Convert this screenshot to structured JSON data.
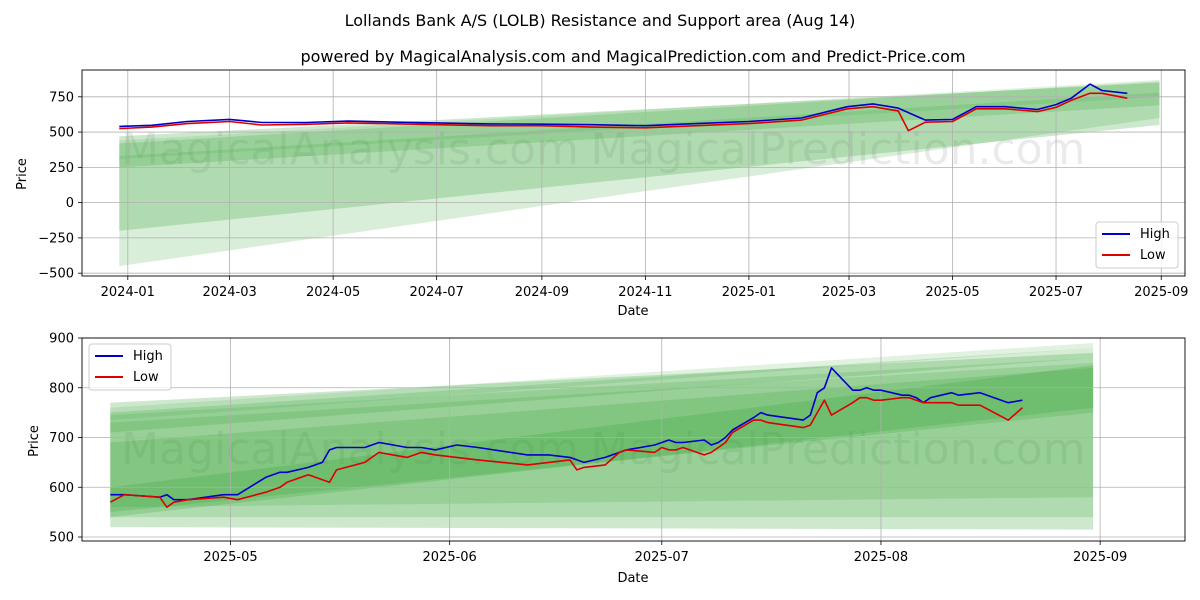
{
  "suptitle": "Lollands Bank A/S (LOLB) Resistance and Support area (Aug 14)",
  "watermarks": [
    "MagicalAnalysis.com",
    "MagicalPrediction.com"
  ],
  "colors": {
    "high": "#0000cc",
    "low": "#dd0000",
    "band": "#2ca02c",
    "grid": "#b0b0b0"
  },
  "chart_data": [
    {
      "type": "line",
      "title": "powered by MagicalAnalysis.com and MagicalPrediction.com and Predict-Price.com",
      "xlabel": "Date",
      "ylabel": "Price",
      "xlim": [
        "2023-12-05",
        "2025-09-15"
      ],
      "ylim": [
        -520,
        940
      ],
      "x_ticks": [
        "2024-01-01",
        "2024-03-01",
        "2024-05-01",
        "2024-07-01",
        "2024-09-01",
        "2024-11-01",
        "2025-01-01",
        "2025-03-01",
        "2025-05-01",
        "2025-07-01",
        "2025-09-01"
      ],
      "x_tick_labels": [
        "2024-01",
        "2024-03",
        "2024-05",
        "2024-07",
        "2024-09",
        "2024-11",
        "2025-01",
        "2025-03",
        "2025-05",
        "2025-07",
        "2025-09"
      ],
      "y_ticks": [
        -500,
        -250,
        0,
        250,
        500,
        750
      ],
      "y_tick_labels": [
        "−500",
        "−250",
        "0",
        "250",
        "500",
        "750"
      ],
      "grid": true,
      "legend": "lower-right",
      "series": [
        {
          "name": "High",
          "color": "#0000cc",
          "x": [
            "2023-12-27",
            "2024-01-15",
            "2024-02-05",
            "2024-03-01",
            "2024-03-20",
            "2024-04-15",
            "2024-05-10",
            "2024-06-01",
            "2024-07-01",
            "2024-08-01",
            "2024-09-01",
            "2024-10-01",
            "2024-11-01",
            "2024-12-01",
            "2025-01-01",
            "2025-02-01",
            "2025-02-28",
            "2025-03-15",
            "2025-03-30",
            "2025-04-15",
            "2025-05-01",
            "2025-05-15",
            "2025-06-01",
            "2025-06-20",
            "2025-07-01",
            "2025-07-10",
            "2025-07-21",
            "2025-07-28",
            "2025-08-12"
          ],
          "y": [
            540,
            548,
            575,
            590,
            568,
            568,
            578,
            572,
            565,
            558,
            556,
            552,
            545,
            560,
            575,
            600,
            680,
            700,
            670,
            585,
            590,
            680,
            680,
            660,
            695,
            740,
            840,
            795,
            775
          ]
        },
        {
          "name": "Low",
          "color": "#dd0000",
          "x": [
            "2023-12-27",
            "2024-01-15",
            "2024-02-05",
            "2024-03-01",
            "2024-03-20",
            "2024-04-15",
            "2024-05-10",
            "2024-06-01",
            "2024-07-01",
            "2024-08-01",
            "2024-09-01",
            "2024-10-01",
            "2024-11-01",
            "2024-12-01",
            "2025-01-01",
            "2025-02-01",
            "2025-02-28",
            "2025-03-15",
            "2025-03-30",
            "2025-04-05",
            "2025-04-15",
            "2025-05-01",
            "2025-05-15",
            "2025-06-01",
            "2025-06-20",
            "2025-07-01",
            "2025-07-10",
            "2025-07-21",
            "2025-07-28",
            "2025-08-12"
          ],
          "y": [
            525,
            535,
            560,
            575,
            550,
            555,
            565,
            560,
            552,
            545,
            545,
            535,
            530,
            545,
            560,
            585,
            665,
            680,
            650,
            510,
            570,
            575,
            665,
            665,
            645,
            675,
            725,
            775,
            775,
            740
          ]
        }
      ],
      "bands": [
        {
          "x0": "2023-12-27",
          "x1": "2025-08-31",
          "lo": [
            310,
            750
          ],
          "hi": [
            440,
            870
          ]
        },
        {
          "x0": "2023-12-27",
          "x1": "2025-08-31",
          "lo": [
            250,
            690
          ],
          "hi": [
            420,
            860
          ]
        },
        {
          "x0": "2023-12-27",
          "x1": "2025-08-31",
          "lo": [
            -200,
            550
          ],
          "hi": [
            470,
            850
          ]
        },
        {
          "x0": "2023-12-27",
          "x1": "2025-08-31",
          "lo": [
            -450,
            600
          ],
          "hi": [
            330,
            780
          ]
        }
      ]
    },
    {
      "type": "line",
      "title": "",
      "xlabel": "Date",
      "ylabel": "Price",
      "xlim": [
        "2025-04-10",
        "2025-09-13"
      ],
      "ylim": [
        492,
        900
      ],
      "x_ticks": [
        "2025-05-01",
        "2025-06-01",
        "2025-07-01",
        "2025-08-01",
        "2025-09-01"
      ],
      "x_tick_labels": [
        "2025-05",
        "2025-06",
        "2025-07",
        "2025-08",
        "2025-09"
      ],
      "y_ticks": [
        500,
        600,
        700,
        800,
        900
      ],
      "y_tick_labels": [
        "500",
        "600",
        "700",
        "800",
        "900"
      ],
      "grid": true,
      "legend": "upper-left",
      "series": [
        {
          "name": "High",
          "color": "#0000cc",
          "x": [
            "2025-04-14",
            "2025-04-16",
            "2025-04-21",
            "2025-04-22",
            "2025-04-23",
            "2025-04-25",
            "2025-04-30",
            "2025-05-02",
            "2025-05-06",
            "2025-05-08",
            "2025-05-09",
            "2025-05-12",
            "2025-05-14",
            "2025-05-15",
            "2025-05-16",
            "2025-05-20",
            "2025-05-22",
            "2025-05-26",
            "2025-05-28",
            "2025-05-30",
            "2025-06-02",
            "2025-06-05",
            "2025-06-12",
            "2025-06-15",
            "2025-06-18",
            "2025-06-19",
            "2025-06-20",
            "2025-06-23",
            "2025-06-25",
            "2025-06-26",
            "2025-06-30",
            "2025-07-01",
            "2025-07-02",
            "2025-07-03",
            "2025-07-04",
            "2025-07-07",
            "2025-07-08",
            "2025-07-09",
            "2025-07-10",
            "2025-07-11",
            "2025-07-14",
            "2025-07-15",
            "2025-07-16",
            "2025-07-21",
            "2025-07-22",
            "2025-07-23",
            "2025-07-24",
            "2025-07-25",
            "2025-07-28",
            "2025-07-29",
            "2025-07-30",
            "2025-07-31",
            "2025-08-01",
            "2025-08-04",
            "2025-08-05",
            "2025-08-06",
            "2025-08-07",
            "2025-08-08",
            "2025-08-11",
            "2025-08-12"
          ],
          "y": [
            585,
            585,
            580,
            585,
            575,
            575,
            585,
            585,
            620,
            630,
            630,
            640,
            650,
            675,
            680,
            680,
            690,
            680,
            680,
            675,
            685,
            680,
            665,
            665,
            660,
            655,
            650,
            660,
            670,
            675,
            685,
            690,
            695,
            690,
            690,
            695,
            685,
            690,
            700,
            715,
            740,
            750,
            745,
            735,
            745,
            790,
            800,
            840,
            795,
            795,
            800,
            795,
            795,
            785,
            785,
            780,
            770,
            780,
            790,
            785
          ],
          "x_extra": [
            "2025-08-15",
            "2025-08-19",
            "2025-08-21"
          ],
          "y_extra": [
            790,
            770,
            775
          ]
        },
        {
          "name": "Low",
          "color": "#dd0000",
          "x": [
            "2025-04-14",
            "2025-04-16",
            "2025-04-21",
            "2025-04-22",
            "2025-04-23",
            "2025-04-25",
            "2025-04-30",
            "2025-05-02",
            "2025-05-06",
            "2025-05-08",
            "2025-05-09",
            "2025-05-12",
            "2025-05-14",
            "2025-05-15",
            "2025-05-16",
            "2025-05-20",
            "2025-05-22",
            "2025-05-26",
            "2025-05-28",
            "2025-05-30",
            "2025-06-02",
            "2025-06-05",
            "2025-06-12",
            "2025-06-15",
            "2025-06-18",
            "2025-06-19",
            "2025-06-20",
            "2025-06-23",
            "2025-06-25",
            "2025-06-26",
            "2025-06-30",
            "2025-07-01",
            "2025-07-02",
            "2025-07-03",
            "2025-07-04",
            "2025-07-07",
            "2025-07-08",
            "2025-07-09",
            "2025-07-10",
            "2025-07-11",
            "2025-07-14",
            "2025-07-15",
            "2025-07-16",
            "2025-07-21",
            "2025-07-22",
            "2025-07-23",
            "2025-07-24",
            "2025-07-25",
            "2025-07-28",
            "2025-07-29",
            "2025-07-30",
            "2025-07-31",
            "2025-08-01",
            "2025-08-04",
            "2025-08-05",
            "2025-08-06",
            "2025-08-07",
            "2025-08-08",
            "2025-08-11",
            "2025-08-12"
          ],
          "y": [
            570,
            585,
            580,
            560,
            570,
            575,
            580,
            575,
            590,
            600,
            610,
            625,
            615,
            610,
            635,
            650,
            670,
            660,
            670,
            665,
            660,
            655,
            645,
            650,
            655,
            635,
            640,
            645,
            670,
            675,
            670,
            680,
            675,
            675,
            680,
            665,
            670,
            680,
            690,
            710,
            735,
            735,
            730,
            720,
            725,
            750,
            775,
            745,
            770,
            780,
            780,
            775,
            775,
            780,
            780,
            775,
            770,
            770,
            770,
            765
          ],
          "x_extra": [
            "2025-08-15",
            "2025-08-19",
            "2025-08-21"
          ],
          "y_extra": [
            765,
            735,
            760
          ]
        }
      ],
      "bands": [
        {
          "x0": "2025-04-14",
          "x1": "2025-08-31",
          "lo": [
            735,
            880
          ],
          "hi": [
            760,
            890
          ]
        },
        {
          "x0": "2025-04-14",
          "x1": "2025-08-31",
          "lo": [
            710,
            860
          ],
          "hi": [
            750,
            880
          ]
        },
        {
          "x0": "2025-04-14",
          "x1": "2025-08-31",
          "lo": [
            520,
            515
          ],
          "hi": [
            770,
            870
          ]
        },
        {
          "x0": "2025-04-14",
          "x1": "2025-08-31",
          "lo": [
            540,
            540
          ],
          "hi": [
            745,
            860
          ]
        },
        {
          "x0": "2025-04-14",
          "x1": "2025-08-31",
          "lo": [
            560,
            580
          ],
          "hi": [
            730,
            850
          ]
        },
        {
          "x0": "2025-04-14",
          "x1": "2025-08-31",
          "lo": [
            540,
            760
          ],
          "hi": [
            600,
            845
          ]
        },
        {
          "x0": "2025-04-14",
          "x1": "2025-08-31",
          "lo": [
            550,
            750
          ],
          "hi": [
            690,
            840
          ]
        }
      ]
    }
  ]
}
